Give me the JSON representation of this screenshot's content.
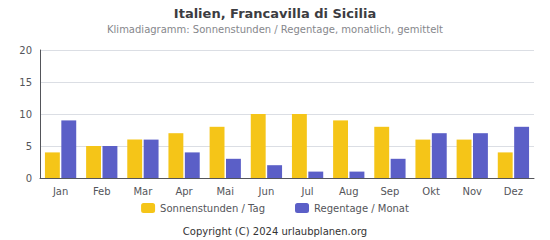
{
  "chart_data": {
    "type": "bar",
    "title": "Italien, Francavilla di Sicilia",
    "subtitle": "Klimadiagramm: Sonnenstunden / Regentage, monatlich, gemittelt",
    "annotations": [
      "Copyright (C) 2024 urlaubplanen.org"
    ],
    "categories": [
      "Jan",
      "Feb",
      "Mar",
      "Apr",
      "Mai",
      "Jun",
      "Jul",
      "Aug",
      "Sep",
      "Okt",
      "Nov",
      "Dez"
    ],
    "series": [
      {
        "name": "Sonnenstunden / Tag",
        "color": "#F5C518",
        "values": [
          4,
          5,
          6,
          7,
          8,
          10,
          10,
          9,
          8,
          6,
          6,
          4
        ]
      },
      {
        "name": "Regentage / Monat",
        "color": "#5B5FC7",
        "values": [
          9,
          5,
          6,
          4,
          3,
          2,
          1,
          1,
          3,
          7,
          7,
          8
        ]
      }
    ],
    "ylim": [
      0,
      20
    ],
    "yticks": [
      0,
      5,
      10,
      15,
      20
    ],
    "grid": true,
    "legend": "bottom"
  }
}
